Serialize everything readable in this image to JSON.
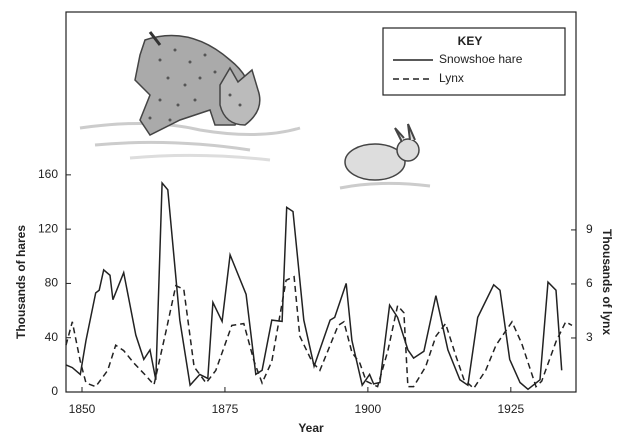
{
  "chart_data": {
    "type": "line",
    "x_label": "Year",
    "y_label": "Thousands of hares",
    "y2_label": "Thousands of lynx",
    "legend_title": "KEY",
    "legend_position": "upper right",
    "xlim": [
      1847.2,
      1936.4
    ],
    "xticks": [
      1850,
      1875,
      1900,
      1925
    ],
    "ylim": [
      0,
      280
    ],
    "yticks": [
      0,
      40,
      80,
      120,
      160
    ],
    "y2lim": [
      0,
      21.1
    ],
    "y2ticks": [
      3,
      6,
      9
    ],
    "series": [
      {
        "name": "Snowshoe hare",
        "color": "#222222",
        "style": "solid",
        "x": [
          1847.2,
          1848.3,
          1849.7,
          1850.7,
          1852.4,
          1853,
          1853.8,
          1854.9,
          1855.4,
          1857.3,
          1859.4,
          1860.8,
          1861.9,
          1862.9,
          1864,
          1865,
          1867.1,
          1868.9,
          1870.6,
          1872,
          1872.9,
          1874.5,
          1875.9,
          1878.7,
          1880.4,
          1881.5,
          1883.2,
          1885,
          1885.8,
          1886.9,
          1888.8,
          1890.6,
          1893.4,
          1894.2,
          1896.2,
          1897.2,
          1899,
          1900.3,
          1901,
          1902.1,
          1903.8,
          1905.2,
          1907,
          1908,
          1909.8,
          1911.9,
          1914,
          1916.1,
          1917.5,
          1919.2,
          1922,
          1923.1,
          1924.8,
          1926.6,
          1928,
          1930.1,
          1931.5,
          1932.9,
          1933.9
        ],
        "values": [
          20,
          18,
          13,
          38,
          73,
          75,
          90,
          86,
          68,
          88,
          42,
          24,
          31,
          9,
          154,
          149,
          53,
          5,
          13,
          10,
          66,
          52,
          101,
          72,
          13,
          16,
          53,
          52,
          136,
          133,
          53,
          19,
          53,
          55,
          80,
          38,
          5,
          13,
          6,
          7,
          64,
          55,
          31,
          25,
          30,
          71,
          31,
          9,
          5,
          55,
          79,
          75,
          24,
          7,
          2,
          9,
          81,
          75,
          16
        ]
      },
      {
        "name": "Lynx",
        "color": "#222222",
        "style": "dashed",
        "axis": "y2",
        "x": [
          1847.2,
          1848.3,
          1849.7,
          1850.7,
          1852.4,
          1854.5,
          1855.9,
          1857.3,
          1859.1,
          1861.2,
          1862.6,
          1864.7,
          1866.4,
          1867.8,
          1869.6,
          1871.7,
          1873.4,
          1876.2,
          1878.3,
          1880.1,
          1881.5,
          1883.2,
          1885.7,
          1887.1,
          1888.1,
          1890.2,
          1891.6,
          1894.8,
          1895.8,
          1897.2,
          1898.6,
          1899.7,
          1901.7,
          1903.5,
          1905.2,
          1906.3,
          1907,
          1908,
          1910.1,
          1911.9,
          1913.6,
          1915.4,
          1916.8,
          1918.5,
          1920.6,
          1922.4,
          1925.2,
          1926.9,
          1929.4,
          1930.4,
          1932.9,
          1934.6,
          1935.7
        ],
        "values": [
          2.6,
          3.9,
          1.7,
          0.5,
          0.3,
          1.2,
          2.6,
          2.3,
          1.6,
          0.9,
          0.4,
          3.4,
          5.9,
          5.7,
          1.4,
          0.5,
          1.2,
          3.7,
          3.8,
          1.7,
          0.5,
          1.7,
          6.2,
          6.4,
          3.1,
          1.7,
          1.2,
          3.7,
          3.9,
          2.2,
          1.6,
          0.6,
          0.3,
          2.3,
          4.8,
          4.4,
          0.3,
          0.3,
          1.4,
          3.1,
          3.8,
          2.0,
          0.7,
          0.2,
          1.2,
          2.6,
          3.9,
          2.7,
          0.3,
          0.6,
          2.8,
          3.9,
          3.7
        ]
      }
    ]
  }
}
